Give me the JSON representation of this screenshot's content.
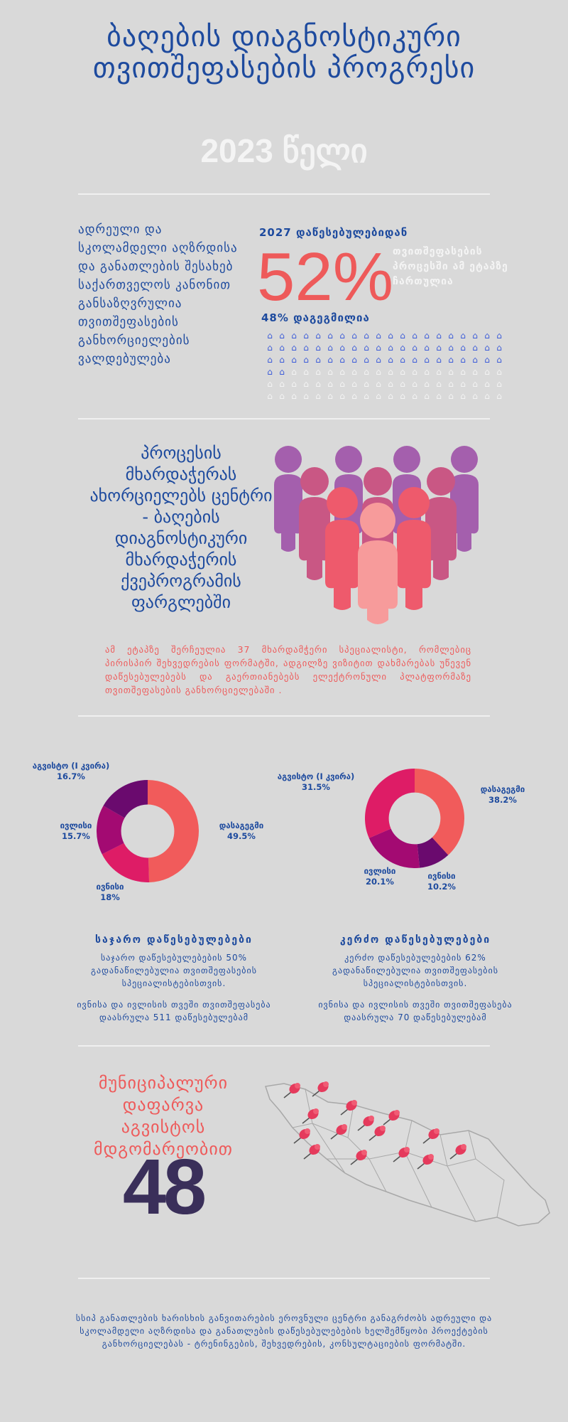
{
  "header": {
    "title": "ბაღების დიაგნოსტიკური თვითშეფასების პროგრესი",
    "year": "2023 წელი"
  },
  "stats": {
    "left_text": "ადრეული და სკოლამდელი აღზრდისა და განათლების შესახებ საქართველოს კანონით განსაზღვრულია თვითშეფასების განხორციელების ვალდებულება",
    "from_label": "2027 დაწესებულებიდან",
    "percent": "52%",
    "percent_note": "თვითშეფასების პროცესში ამ ეტაპზე ჩართულია",
    "planned": "48% დაგეგმილია",
    "filled_fraction": 0.52,
    "colors": {
      "filled": "#3b5bd9",
      "empty": "#f4f4f4"
    }
  },
  "center": {
    "heading": "პროცესის მხარდაჭერას ახორციელებს ცენტრი - ბაღების დიაგნოსტიკური მხარდაჭერის ქვეპროგრამის ფარგლებში",
    "text": "ამ ეტაპზე შერჩეულია 37 მხარდამჭერი სპეციალისტი, რომლებიც პირისპირ შეხვედრების ფორმატში, ადგილზე ვიზიტით დახმარებას უწევენ დაწესებულებებს და გაერთიანებებს ელექტრონული პლატფორმაზე თვითშეფასების განხორციელებაში ."
  },
  "chart_data": [
    {
      "type": "pie",
      "title": "საჯარო დაწესებულებები",
      "categories": [
        "დასაგეგმი",
        "ივნისი",
        "ივლისი",
        "აგვისტო (I კვირა)"
      ],
      "values": [
        49.5,
        18,
        15.7,
        16.7
      ],
      "labels": [
        "49.5%",
        "18%",
        "15.7%",
        "16.7%"
      ],
      "colors": [
        "#f15b5b",
        "#de1c66",
        "#a30a72",
        "#6a0a6e"
      ]
    },
    {
      "type": "pie",
      "title": "კერძო დაწესებულებები",
      "categories": [
        "დასაგეგმი",
        "ივნისი",
        "ივლისი",
        "აგვისტო (I კვირა)"
      ],
      "values": [
        38.2,
        10.2,
        20.1,
        31.5
      ],
      "labels": [
        "38.2%",
        "10.2%",
        "20.1%",
        "31.5%"
      ],
      "colors": [
        "#f15b5b",
        "#6a0a6e",
        "#a30a72",
        "#de1c66"
      ]
    }
  ],
  "public": {
    "title": "საჯარო დაწესებულებები",
    "line1": "საჯარო დაწესებულებების 50% გადანაწილებულია თვითშეფასების სპეციალისტებისთვის.",
    "line2": "ივნისა და ივლისის თვეში თვითშეფასება დაასრულა 511 დაწესებულებამ"
  },
  "private": {
    "title": "კერძო დაწესებულებები",
    "line1": "კერძო დაწესებულებების 62% გადანაწილებულია თვითშეფასების სპეციალისტებისთვის.",
    "line2": "ივნისა და ივლისის თვეში თვითშეფასება დაასრულა 70 დაწესებულებამ"
  },
  "coverage": {
    "label": "მუნიციპალური დაფარვა აგვისტოს მდგომარეობით",
    "number": "48"
  },
  "footer": {
    "text": "სსიპ განათლების ხარისხის განვითარების ეროვნული ცენტრი განაგრძობს ადრეული და სკოლამდელი აღზრდისა და განათლების დაწესებულებების ხელშემწყობი პროექტების განხორციელებას - ტრენინგების, შეხვედრების, კონსულტაციების ფორმატში."
  }
}
